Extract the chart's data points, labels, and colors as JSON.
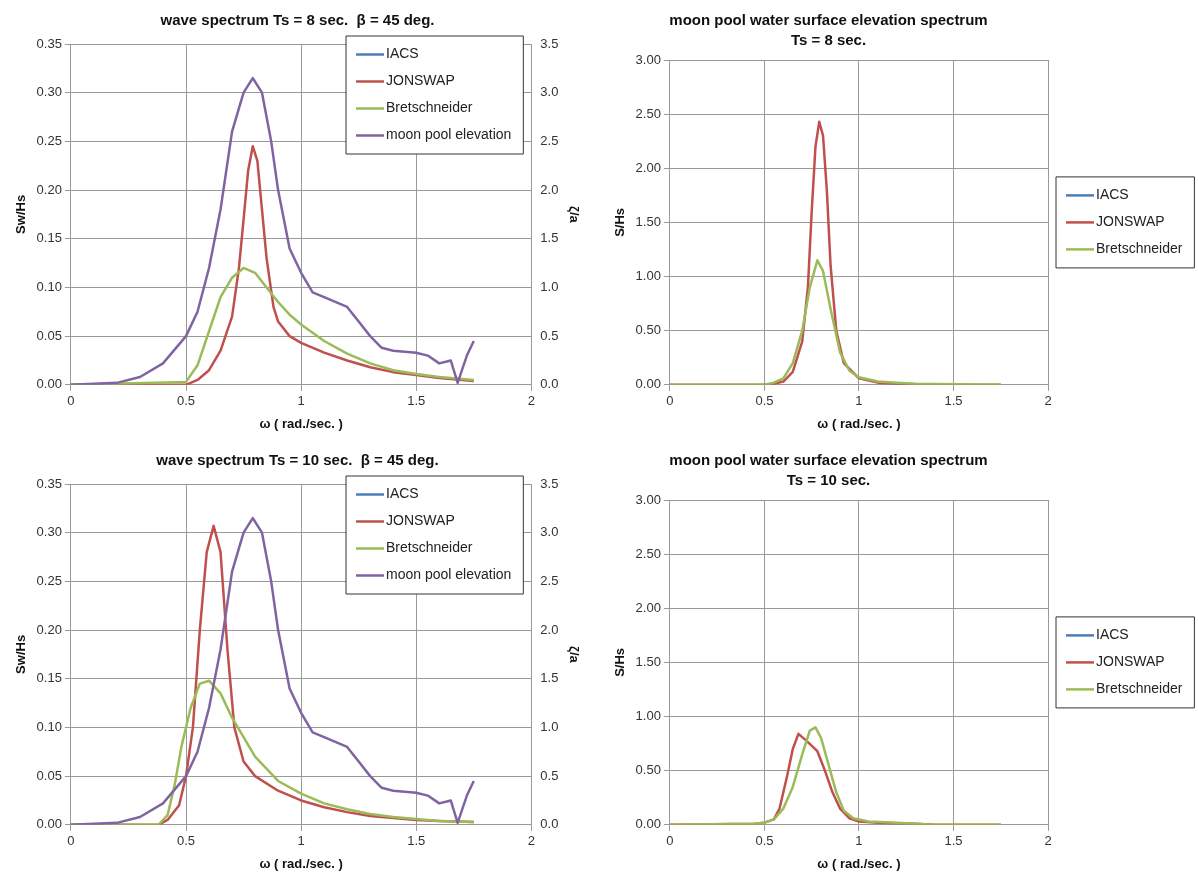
{
  "chart_data": [
    {
      "type": "line",
      "title": "wave spectrum Ts = 8 sec.  β = 45 deg.",
      "xlabel": "ω ( rad./sec. )",
      "ylabel": "Sw/Hs",
      "y2label": "ζ/a",
      "xlim": [
        0,
        2
      ],
      "xticks": [
        0,
        0.5,
        1,
        1.5,
        2
      ],
      "ylim": [
        0,
        0.35
      ],
      "yticks": [
        {
          "value": 0,
          "label": "0.00"
        },
        0.05,
        {
          "value": 0.1,
          "label": "0.10"
        },
        0.15,
        {
          "value": 0.2,
          "label": "0.20"
        },
        0.25,
        {
          "value": 0.3,
          "label": "0.30"
        },
        0.35
      ],
      "y2lim": [
        0,
        3.5
      ],
      "y2ticks": [
        {
          "value": 0,
          "label": "0.0"
        },
        0.5,
        {
          "value": 1,
          "label": "1.0"
        },
        1.5,
        {
          "value": 2,
          "label": "2.0"
        },
        2.5,
        {
          "value": 3,
          "label": "3.0"
        },
        3.5
      ],
      "grid": true,
      "legend": "top right",
      "series": [
        {
          "name": "IACS",
          "color": "#4a7ebb"
        },
        {
          "name": "JONSWAP",
          "color": "#c0504d",
          "x": [
            0,
            0.5,
            0.55,
            0.6,
            0.65,
            0.7,
            0.73,
            0.75,
            0.77,
            0.79,
            0.81,
            0.83,
            0.85,
            0.88,
            0.9,
            0.95,
            1.0,
            1.1,
            1.2,
            1.3,
            1.4,
            1.5,
            1.6,
            1.7,
            1.75
          ],
          "values": [
            0,
            0,
            0.005,
            0.015,
            0.035,
            0.07,
            0.12,
            0.17,
            0.22,
            0.245,
            0.23,
            0.18,
            0.13,
            0.08,
            0.065,
            0.05,
            0.043,
            0.033,
            0.025,
            0.018,
            0.013,
            0.01,
            0.007,
            0.005,
            0.004
          ]
        },
        {
          "name": "Bretschneider",
          "color": "#9bbb59",
          "x": [
            0,
            0.5,
            0.55,
            0.6,
            0.65,
            0.7,
            0.75,
            0.8,
            0.85,
            0.9,
            0.95,
            1.0,
            1.1,
            1.2,
            1.3,
            1.4,
            1.5,
            1.6,
            1.7,
            1.75
          ],
          "values": [
            0,
            0.003,
            0.02,
            0.055,
            0.09,
            0.11,
            0.12,
            0.115,
            0.1,
            0.085,
            0.072,
            0.062,
            0.045,
            0.032,
            0.022,
            0.015,
            0.011,
            0.008,
            0.006,
            0.005
          ]
        },
        {
          "name": "moon pool elevation",
          "color": "#8064a2",
          "axis": "y2",
          "x": [
            0,
            0.1,
            0.2,
            0.3,
            0.4,
            0.5,
            0.55,
            0.6,
            0.65,
            0.7,
            0.75,
            0.79,
            0.83,
            0.87,
            0.9,
            0.95,
            1.0,
            1.05,
            1.1,
            1.2,
            1.25,
            1.3,
            1.35,
            1.4,
            1.5,
            1.55,
            1.6,
            1.65,
            1.68,
            1.72,
            1.75
          ],
          "values": [
            0,
            0.01,
            0.02,
            0.08,
            0.22,
            0.5,
            0.75,
            1.2,
            1.8,
            2.6,
            3.0,
            3.15,
            3.0,
            2.5,
            2.0,
            1.4,
            1.15,
            0.95,
            0.9,
            0.8,
            0.65,
            0.5,
            0.38,
            0.35,
            0.33,
            0.3,
            0.22,
            0.25,
            0.02,
            0.3,
            0.45
          ]
        }
      ]
    },
    {
      "type": "line",
      "title": "moon pool water surface elevation spectrum",
      "subtitle": "Ts = 8 sec.",
      "xlabel": "ω ( rad./sec. )",
      "ylabel": "S/Hs",
      "xlim": [
        0,
        2
      ],
      "xticks": [
        0,
        0.5,
        1,
        1.5,
        2
      ],
      "ylim": [
        0,
        3
      ],
      "yticks": [
        {
          "value": 0,
          "label": "0.00"
        },
        {
          "value": 0.5,
          "label": "0.50"
        },
        {
          "value": 1,
          "label": "1.00"
        },
        {
          "value": 1.5,
          "label": "1.50"
        },
        {
          "value": 2,
          "label": "2.00"
        },
        {
          "value": 2.5,
          "label": "2.50"
        },
        {
          "value": 3,
          "label": "3.00"
        }
      ],
      "grid": true,
      "legend": "right",
      "series": [
        {
          "name": "IACS",
          "color": "#4a7ebb"
        },
        {
          "name": "JONSWAP",
          "color": "#c0504d",
          "x": [
            0,
            0.5,
            0.55,
            0.6,
            0.65,
            0.7,
            0.73,
            0.75,
            0.77,
            0.79,
            0.81,
            0.83,
            0.85,
            0.88,
            0.92,
            1.0,
            1.1,
            1.2,
            1.3,
            1.75
          ],
          "values": [
            0,
            0,
            0.01,
            0.03,
            0.12,
            0.4,
            0.9,
            1.6,
            2.2,
            2.43,
            2.3,
            1.8,
            1.1,
            0.5,
            0.2,
            0.06,
            0.02,
            0.01,
            0,
            0
          ]
        },
        {
          "name": "Bretschneider",
          "color": "#9bbb59",
          "x": [
            0,
            0.5,
            0.55,
            0.6,
            0.65,
            0.7,
            0.74,
            0.78,
            0.81,
            0.85,
            0.9,
            0.95,
            1.0,
            1.1,
            1.2,
            1.3,
            1.75
          ],
          "values": [
            0,
            0,
            0.02,
            0.06,
            0.2,
            0.5,
            0.9,
            1.15,
            1.05,
            0.7,
            0.3,
            0.13,
            0.07,
            0.03,
            0.02,
            0.01,
            0
          ]
        }
      ]
    },
    {
      "type": "line",
      "title": "wave spectrum Ts = 10 sec.  β = 45 deg.",
      "xlabel": "ω ( rad./sec. )",
      "ylabel": "Sw/Hs",
      "y2label": "ζ/a",
      "xlim": [
        0,
        2
      ],
      "xticks": [
        0,
        0.5,
        1,
        1.5,
        2
      ],
      "ylim": [
        0,
        0.35
      ],
      "yticks": [
        {
          "value": 0,
          "label": "0.00"
        },
        0.05,
        {
          "value": 0.1,
          "label": "0.10"
        },
        0.15,
        {
          "value": 0.2,
          "label": "0.20"
        },
        0.25,
        {
          "value": 0.3,
          "label": "0.30"
        },
        0.35
      ],
      "y2lim": [
        0,
        3.5
      ],
      "y2ticks": [
        {
          "value": 0,
          "label": "0.0"
        },
        0.5,
        {
          "value": 1,
          "label": "1.0"
        },
        1.5,
        {
          "value": 2,
          "label": "2.0"
        },
        2.5,
        {
          "value": 3,
          "label": "3.0"
        },
        3.5
      ],
      "grid": true,
      "legend": "top right",
      "series": [
        {
          "name": "IACS",
          "color": "#4a7ebb"
        },
        {
          "name": "JONSWAP",
          "color": "#c0504d",
          "x": [
            0,
            0.38,
            0.42,
            0.47,
            0.5,
            0.53,
            0.56,
            0.59,
            0.62,
            0.65,
            0.68,
            0.71,
            0.75,
            0.8,
            0.9,
            1.0,
            1.1,
            1.2,
            1.3,
            1.4,
            1.5,
            1.6,
            1.75
          ],
          "values": [
            0,
            0,
            0.005,
            0.02,
            0.05,
            0.1,
            0.2,
            0.28,
            0.307,
            0.28,
            0.18,
            0.1,
            0.065,
            0.05,
            0.035,
            0.025,
            0.018,
            0.013,
            0.009,
            0.007,
            0.005,
            0.004,
            0.003
          ]
        },
        {
          "name": "Bretschneider",
          "color": "#9bbb59",
          "x": [
            0,
            0.38,
            0.42,
            0.45,
            0.48,
            0.52,
            0.56,
            0.6,
            0.65,
            0.7,
            0.75,
            0.8,
            0.9,
            1.0,
            1.1,
            1.2,
            1.3,
            1.4,
            1.5,
            1.6,
            1.75
          ],
          "values": [
            0,
            0,
            0.01,
            0.04,
            0.08,
            0.12,
            0.145,
            0.148,
            0.135,
            0.11,
            0.09,
            0.07,
            0.045,
            0.032,
            0.022,
            0.016,
            0.011,
            0.008,
            0.006,
            0.004,
            0.003
          ]
        },
        {
          "name": "moon pool elevation",
          "color": "#8064a2",
          "axis": "y2",
          "x": [
            0,
            0.1,
            0.2,
            0.3,
            0.4,
            0.5,
            0.55,
            0.6,
            0.65,
            0.7,
            0.75,
            0.79,
            0.83,
            0.87,
            0.9,
            0.95,
            1.0,
            1.05,
            1.1,
            1.2,
            1.25,
            1.3,
            1.35,
            1.4,
            1.5,
            1.55,
            1.6,
            1.65,
            1.68,
            1.72,
            1.75
          ],
          "values": [
            0,
            0.01,
            0.02,
            0.08,
            0.22,
            0.5,
            0.75,
            1.2,
            1.8,
            2.6,
            3.0,
            3.15,
            3.0,
            2.5,
            2.0,
            1.4,
            1.15,
            0.95,
            0.9,
            0.8,
            0.65,
            0.5,
            0.38,
            0.35,
            0.33,
            0.3,
            0.22,
            0.25,
            0.02,
            0.3,
            0.45
          ]
        }
      ]
    },
    {
      "type": "line",
      "title": "moon pool water surface elevation spectrum",
      "subtitle": "Ts = 10 sec.",
      "xlabel": "ω ( rad./sec. )",
      "ylabel": "S/Hs",
      "xlim": [
        0,
        2
      ],
      "xticks": [
        0,
        0.5,
        1,
        1.5,
        2
      ],
      "ylim": [
        0,
        3
      ],
      "yticks": [
        {
          "value": 0,
          "label": "0.00"
        },
        {
          "value": 0.5,
          "label": "0.50"
        },
        {
          "value": 1,
          "label": "1.00"
        },
        {
          "value": 1.5,
          "label": "1.50"
        },
        {
          "value": 2,
          "label": "2.00"
        },
        {
          "value": 2.5,
          "label": "2.50"
        },
        {
          "value": 3,
          "label": "3.00"
        }
      ],
      "grid": true,
      "legend": "right",
      "series": [
        {
          "name": "IACS",
          "color": "#4a7ebb"
        },
        {
          "name": "JONSWAP",
          "color": "#c0504d",
          "x": [
            0,
            0.45,
            0.5,
            0.55,
            0.58,
            0.62,
            0.65,
            0.68,
            0.72,
            0.78,
            0.82,
            0.86,
            0.9,
            0.95,
            1.0,
            1.1,
            1.3,
            1.4,
            1.75
          ],
          "values": [
            0,
            0.01,
            0.02,
            0.05,
            0.15,
            0.45,
            0.7,
            0.84,
            0.78,
            0.68,
            0.5,
            0.3,
            0.15,
            0.06,
            0.03,
            0.02,
            0.01,
            0,
            0
          ]
        },
        {
          "name": "Bretschneider",
          "color": "#9bbb59",
          "x": [
            0,
            0.45,
            0.5,
            0.55,
            0.6,
            0.65,
            0.7,
            0.74,
            0.77,
            0.8,
            0.84,
            0.88,
            0.92,
            0.97,
            1.05,
            1.2,
            1.3,
            1.4,
            1.75
          ],
          "values": [
            0,
            0.01,
            0.02,
            0.05,
            0.15,
            0.35,
            0.65,
            0.87,
            0.9,
            0.8,
            0.55,
            0.3,
            0.13,
            0.06,
            0.03,
            0.02,
            0.01,
            0,
            0
          ]
        }
      ]
    }
  ]
}
